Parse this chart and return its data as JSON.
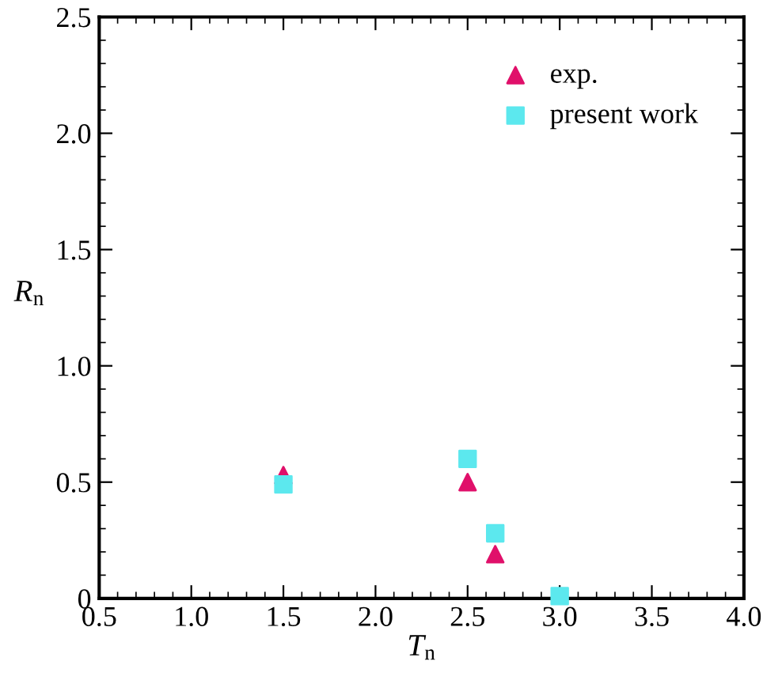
{
  "chart_data": {
    "type": "scatter",
    "xlabel": "T$_{n}$",
    "ylabel": "R$_{n}$",
    "series": [
      {
        "name": "exp.",
        "color": "#e0106a",
        "marker": "triangle",
        "x": [
          1.5,
          2.5,
          2.65
        ],
        "values": [
          0.53,
          0.5,
          0.19
        ]
      },
      {
        "name": "present work",
        "color": "#5ce8ee",
        "marker": "square",
        "x": [
          1.5,
          2.5,
          2.65,
          3.0
        ],
        "values": [
          0.49,
          0.6,
          0.28,
          0.01
        ]
      }
    ],
    "xlim": [
      0.5,
      4.0
    ],
    "xticks": [
      {
        "value": 0.5,
        "label": "0.5"
      },
      {
        "value": 1.0,
        "label": "1.0"
      },
      {
        "value": 1.5,
        "label": "1.5"
      },
      {
        "value": 2.0,
        "label": "2.0"
      },
      {
        "value": 2.5,
        "label": "2.5"
      },
      {
        "value": 3.0,
        "label": "3.0"
      },
      {
        "value": 3.5,
        "label": "3.5"
      },
      {
        "value": 4.0,
        "label": "4.0"
      }
    ],
    "ylim": [
      0,
      2.5
    ],
    "yticks": [
      {
        "value": 0,
        "label": "0"
      },
      {
        "value": 0.5,
        "label": "0.5"
      },
      {
        "value": 1.0,
        "label": "1.0"
      },
      {
        "value": 1.5,
        "label": "1.5"
      },
      {
        "value": 2.0,
        "label": "2.0"
      },
      {
        "value": 2.5,
        "label": "2.5"
      }
    ],
    "legend": "top right",
    "grid": false
  }
}
